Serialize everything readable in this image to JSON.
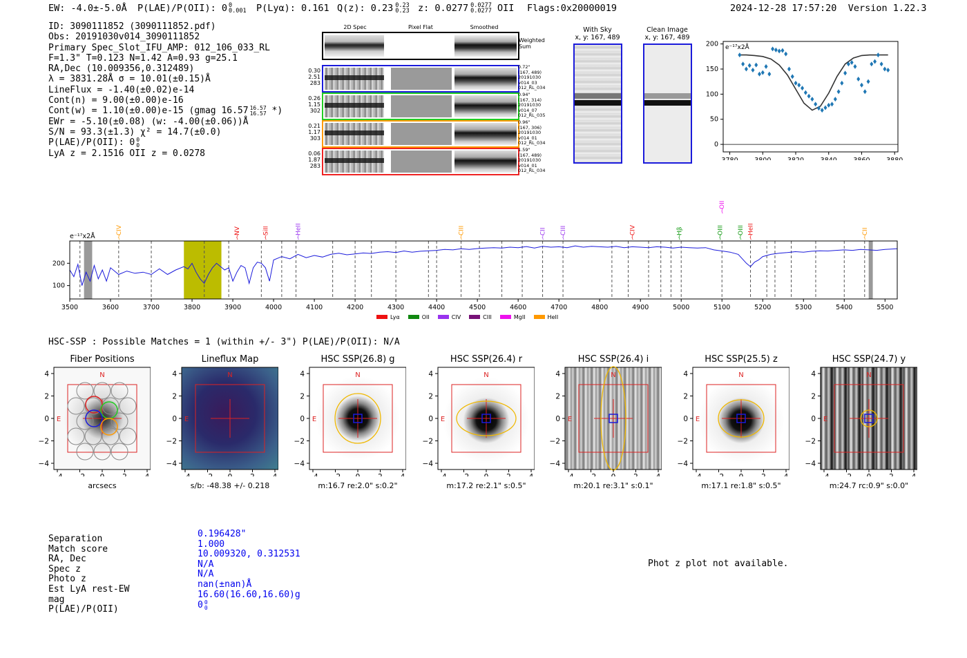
{
  "header": {
    "ew": "EW: -4.0±-5.0Å",
    "plae": "P(LAE)/P(OII): 0",
    "plae_sup": "0",
    "plae_sub": "0.001",
    "plya": "P(Lyα): 0.161",
    "qz": "Q(z): 0.23",
    "qz_sup": "0.23",
    "qz_sub": "0.23",
    "z": "z: 0.0277",
    "z_sup": "0.0277",
    "z_sub": "0.0277",
    "z_line": "OII",
    "flags": "Flags:0x20000019",
    "timestamp": "2024-12-28 17:57:20",
    "version": "Version 1.22.3"
  },
  "info": {
    "id": "ID: 3090111852 (3090111852.pdf)",
    "obs": "Obs: 20191030v014_3090111852",
    "primary": "Primary Spec_Slot_IFU_AMP: 012_106_033_RL",
    "fiber_params": "F=1.3\"  T=0.123  N=1.42  A=0.93  g=25.1",
    "radec": "RA,Dec (10.009356,0.312489)",
    "lambda": "λ = 3831.28Å  σ = 10.01(±0.15)Å",
    "lineflux": "LineFlux = -1.40(±0.02)e-14",
    "contn": "Cont(n) = 9.00(±0.00)e-16",
    "contw": "Cont(w) = 1.10(±0.00)e-15 (gmag 16.57",
    "contw_sup": "16.57",
    "contw_sub": "16.57",
    "contw_end": " *)",
    "ewr": "EWr = -5.10(±0.08) (w: -4.00(±0.06))Å",
    "sn": "S/N = 93.3(±1.3)  χ² = 14.7(±0.0)",
    "plae": "P(LAE)/P(OII): 0",
    "plae_sup": "0",
    "plae_sub": "0",
    "lyaz": "LyA z = 2.1516  OII z = 0.0278"
  },
  "cutouts": {
    "col_headers": [
      "2D Spec",
      "Pixel Flat",
      "Smoothed"
    ],
    "weighted_label": "Weighted Sum",
    "rows": [
      {
        "left": [
          "0.30",
          "2.51",
          "283"
        ],
        "right": [
          "0.72\"",
          "(167, 489)",
          "20191030",
          "v014_03",
          "012_RL_034"
        ],
        "color": "#1a1adb"
      },
      {
        "left": [
          "0.26",
          "1.15",
          "302"
        ],
        "right": [
          "0.94\"",
          "(167, 314)",
          "20191030",
          "v014_07",
          "012_RL_035"
        ],
        "color": "#22cc22"
      },
      {
        "left": [
          "0.21",
          "1.17",
          "303"
        ],
        "right": [
          "0.96\"",
          "(167, 306)",
          "20191030",
          "v014_01",
          "012_RL_034"
        ],
        "color": "#ff9900"
      },
      {
        "left": [
          "0.06",
          "1.87",
          "283"
        ],
        "right": [
          "1.59\"",
          "(167, 489)",
          "20191030",
          "v014_01",
          "012_RL_034"
        ],
        "color": "#ee2222"
      }
    ]
  },
  "sky": {
    "with_sky_title": "With Sky",
    "with_sky_coord": "x, y: 167, 489",
    "clean_title": "Clean Image",
    "clean_coord": "x, y: 167, 489"
  },
  "fit_plot": {
    "unit_label": "e⁻¹⁷x2Å",
    "x_ticks": [
      "3780",
      "3800",
      "3820",
      "3840",
      "3860",
      "3880"
    ],
    "y_ticks": [
      "0",
      "50",
      "100",
      "150",
      "200"
    ]
  },
  "chart_data": [
    {
      "type": "scatter",
      "title": "",
      "xlabel": "",
      "ylabel": "e-17 x2Å",
      "xlim": [
        3776,
        3882
      ],
      "ylim": [
        -15,
        205
      ],
      "points_x": [
        3786,
        3788,
        3790,
        3792,
        3794,
        3796,
        3798,
        3800,
        3802,
        3804,
        3806,
        3808,
        3810,
        3812,
        3814,
        3816,
        3818,
        3820,
        3822,
        3824,
        3826,
        3828,
        3830,
        3832,
        3834,
        3836,
        3838,
        3840,
        3842,
        3844,
        3846,
        3848,
        3850,
        3852,
        3854,
        3856,
        3858,
        3860,
        3862,
        3864,
        3866,
        3868,
        3870,
        3872,
        3874,
        3876
      ],
      "points_y": [
        178,
        160,
        150,
        157,
        148,
        158,
        140,
        143,
        155,
        140,
        190,
        188,
        186,
        187,
        180,
        150,
        135,
        122,
        118,
        112,
        103,
        96,
        90,
        80,
        72,
        68,
        73,
        78,
        80,
        90,
        105,
        122,
        142,
        160,
        163,
        155,
        130,
        118,
        105,
        125,
        160,
        165,
        178,
        160,
        150,
        148
      ],
      "model_x": [
        3786,
        3790,
        3795,
        3800,
        3805,
        3810,
        3815,
        3820,
        3825,
        3830,
        3835,
        3840,
        3845,
        3850,
        3855,
        3860,
        3865,
        3870,
        3876
      ],
      "model_y": [
        178,
        178,
        177,
        175,
        170,
        158,
        138,
        110,
        82,
        68,
        76,
        102,
        135,
        160,
        172,
        177,
        178,
        178,
        178
      ],
      "x_ticks": [
        3780,
        3800,
        3820,
        3840,
        3860,
        3880
      ],
      "y_ticks": [
        0,
        50,
        100,
        150,
        200
      ]
    },
    {
      "type": "line",
      "title": "",
      "ylabel": "e-17 x2Å",
      "xlim": [
        3500,
        5530
      ],
      "ylim": [
        40,
        300
      ],
      "x_ticks": [
        3500,
        3600,
        3700,
        3800,
        3900,
        4000,
        4100,
        4200,
        4300,
        4400,
        4500,
        4600,
        4700,
        4800,
        4900,
        5000,
        5100,
        5200,
        5300,
        5400,
        5500
      ],
      "y_ticks": [
        100,
        200
      ],
      "x": [
        3500,
        3510,
        3520,
        3530,
        3540,
        3550,
        3560,
        3570,
        3580,
        3590,
        3600,
        3620,
        3640,
        3660,
        3680,
        3700,
        3720,
        3740,
        3760,
        3780,
        3790,
        3800,
        3810,
        3820,
        3830,
        3840,
        3850,
        3860,
        3870,
        3880,
        3890,
        3900,
        3910,
        3920,
        3930,
        3940,
        3950,
        3960,
        3970,
        3980,
        3990,
        4000,
        4020,
        4040,
        4060,
        4080,
        4100,
        4120,
        4140,
        4160,
        4180,
        4200,
        4220,
        4240,
        4260,
        4280,
        4300,
        4320,
        4340,
        4360,
        4380,
        4400,
        4420,
        4440,
        4460,
        4480,
        4500,
        4520,
        4540,
        4560,
        4580,
        4600,
        4620,
        4640,
        4660,
        4680,
        4700,
        4720,
        4740,
        4760,
        4780,
        4800,
        4820,
        4840,
        4860,
        4880,
        4900,
        4920,
        4940,
        4960,
        4980,
        5000,
        5020,
        5040,
        5060,
        5080,
        5100,
        5120,
        5140,
        5160,
        5170,
        5180,
        5190,
        5200,
        5220,
        5240,
        5260,
        5280,
        5300,
        5320,
        5340,
        5360,
        5380,
        5400,
        5420,
        5440,
        5460,
        5480,
        5500,
        5530
      ],
      "y": [
        170,
        140,
        195,
        100,
        160,
        120,
        190,
        130,
        170,
        120,
        180,
        150,
        165,
        155,
        160,
        150,
        175,
        150,
        170,
        185,
        175,
        200,
        160,
        130,
        110,
        150,
        180,
        200,
        185,
        170,
        180,
        120,
        160,
        190,
        180,
        110,
        180,
        205,
        200,
        180,
        120,
        215,
        230,
        220,
        240,
        225,
        235,
        228,
        240,
        245,
        238,
        242,
        246,
        244,
        250,
        252,
        248,
        255,
        250,
        254,
        256,
        258,
        262,
        260,
        265,
        262,
        266,
        268,
        270,
        268,
        272,
        270,
        275,
        268,
        276,
        272,
        274,
        270,
        278,
        272,
        276,
        274,
        272,
        276,
        270,
        274,
        272,
        270,
        274,
        272,
        268,
        272,
        270,
        268,
        270,
        260,
        255,
        250,
        240,
        200,
        185,
        205,
        215,
        230,
        240,
        245,
        248,
        252,
        250,
        254,
        256,
        255,
        258,
        260,
        258,
        262,
        260,
        258,
        262,
        265
      ]
    }
  ],
  "spectrum": {
    "unit_label": "e⁻¹⁷x2Å",
    "lines": [
      {
        "name": "CIV",
        "wave": 3620,
        "color": "#ff9900"
      },
      {
        "name": "NV",
        "wave": 3910,
        "color": "#ee1111"
      },
      {
        "name": "SiII",
        "wave": 3980,
        "color": "#ee1111"
      },
      {
        "name": "HeII",
        "wave": 4060,
        "color": "#9933ee"
      },
      {
        "name": "CIII",
        "wave": 4460,
        "color": "#ff9900"
      },
      {
        "name": "CII",
        "wave": 4660,
        "color": "#9933ee"
      },
      {
        "name": "CIII",
        "wave": 4710,
        "color": "#9933ee"
      },
      {
        "name": "CIV",
        "wave": 4880,
        "color": "#ee1111"
      },
      {
        "name": "Hβ",
        "wave": 4995,
        "color": "#119911"
      },
      {
        "name": "OIII",
        "wave": 5095,
        "color": "#119911"
      },
      {
        "name": "OII",
        "wave": 5100,
        "color": "#ee11ee"
      },
      {
        "name": "OIII",
        "wave": 5145,
        "color": "#119911"
      },
      {
        "name": "HeII",
        "wave": 5170,
        "color": "#ee1111"
      },
      {
        "name": "CII",
        "wave": 5450,
        "color": "#ff9900"
      }
    ],
    "legend": [
      {
        "name": "Lyα",
        "color": "#ee1111"
      },
      {
        "name": "OII",
        "color": "#118811"
      },
      {
        "name": "CIV",
        "color": "#9933ee"
      },
      {
        "name": "CIII",
        "color": "#771177"
      },
      {
        "name": "MgII",
        "color": "#ee11ee"
      },
      {
        "name": "HeII",
        "color": "#ff9900"
      }
    ]
  },
  "hsc": {
    "header": "HSC-SSP : Possible Matches = 1 (within +/- 3\")  P(LAE)/P(OII): N/A",
    "panels": [
      {
        "title": "Fiber Positions",
        "footer": "arcsecs"
      },
      {
        "title": "Lineflux Map",
        "footer": "s/b: -48.38 +/- 0.218"
      },
      {
        "title": "HSC SSP(26.8) g",
        "footer": "m:16.7  re:2.0\"  s:0.2\""
      },
      {
        "title": "HSC SSP(26.4) r",
        "footer": "m:17.2  re:2.1\"  s:0.5\""
      },
      {
        "title": "HSC SSP(26.4) i",
        "footer": "m:20.1  re:3.1\"  s:0.1\""
      },
      {
        "title": "HSC SSP(25.5) z",
        "footer": "m:17.1  re:1.8\"  s:0.5\""
      },
      {
        "title": "HSC SSP(24.7) y",
        "footer": "m:24.7  rc:0.9\"  s:0.0\""
      }
    ],
    "ticks": [
      "4",
      "2",
      "0",
      "−2",
      "−4"
    ],
    "xticks": [
      "−4",
      "−2",
      "0",
      "2",
      "4"
    ],
    "n_label": "N",
    "e_label": "E"
  },
  "match": {
    "labels": [
      "Separation",
      "Match score",
      "RA, Dec",
      "Spec z",
      "Photo z",
      "Est LyA rest-EW",
      "mag",
      "P(LAE)/P(OII)"
    ],
    "values": [
      "0.196428\"",
      "1.000",
      "10.009320, 0.312531",
      "N/A",
      "N/A",
      "nan(±nan)Å",
      "16.60(16.60,16.60)g",
      "0"
    ],
    "plae_sup": "0",
    "plae_sub": "0",
    "phot_z": "Phot z plot not available."
  }
}
